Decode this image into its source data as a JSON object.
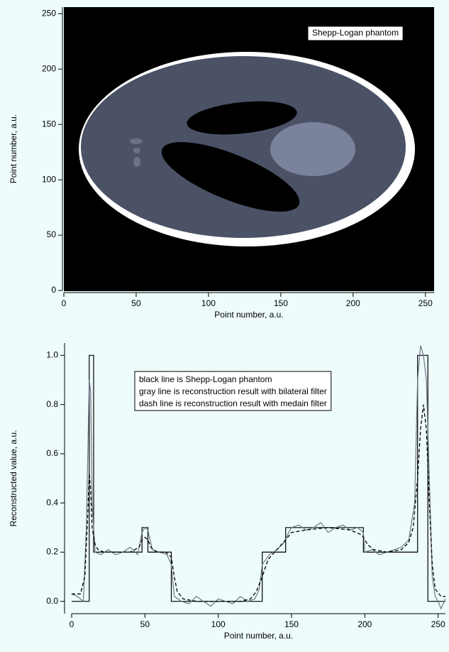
{
  "chart_data": [
    {
      "type": "image",
      "annotation": "Shepp-Logan phantom",
      "xlabel": "Point number, a.u.",
      "ylabel": "Point number, a.u.",
      "xlim": [
        0,
        256
      ],
      "ylim": [
        0,
        256
      ],
      "xticks": [
        0,
        50,
        100,
        150,
        200,
        250
      ],
      "yticks": [
        0,
        50,
        100,
        150,
        200,
        250
      ]
    },
    {
      "type": "line",
      "xlabel": "Point number, a.u.",
      "ylabel": "Reconstructed value, a.u.",
      "xlim": [
        0,
        255
      ],
      "ylim": [
        -0.05,
        1.05
      ],
      "xticks": [
        0,
        50,
        100,
        150,
        200,
        250
      ],
      "yticks": [
        {
          "value": 0,
          "label": "0.0"
        },
        {
          "value": 0.2,
          "label": "0.2"
        },
        {
          "value": 0.4,
          "label": "0.4"
        },
        {
          "value": 0.6,
          "label": "0.6"
        },
        {
          "value": 0.8,
          "label": "0.8"
        },
        {
          "value": 1,
          "label": "1.0"
        }
      ],
      "series": [
        {
          "name": "black line is Shepp-Logan phantom",
          "color": "#000000",
          "dash": false,
          "x": [
            0,
            12,
            12,
            15,
            15,
            48,
            48,
            52,
            52,
            68,
            68,
            130,
            130,
            146,
            146,
            199,
            199,
            236,
            236,
            243,
            243,
            255
          ],
          "values": [
            0,
            0,
            1,
            1,
            0.2,
            0.2,
            0.3,
            0.3,
            0.2,
            0.2,
            0,
            0,
            0.2,
            0.2,
            0.3,
            0.3,
            0.2,
            0.2,
            1,
            1,
            0,
            0
          ]
        },
        {
          "name": "gray line is reconstruction result with bilateral filter",
          "color": "#6e7585",
          "dash": false,
          "x": [
            0,
            4,
            8,
            10,
            12,
            13,
            14,
            16,
            20,
            25,
            30,
            35,
            40,
            45,
            48,
            50,
            52,
            55,
            60,
            65,
            68,
            70,
            75,
            80,
            85,
            90,
            95,
            100,
            105,
            110,
            115,
            120,
            125,
            128,
            130,
            135,
            140,
            145,
            148,
            150,
            155,
            160,
            165,
            170,
            175,
            180,
            185,
            190,
            195,
            199,
            200,
            205,
            210,
            215,
            220,
            225,
            230,
            234,
            236,
            238,
            240,
            242,
            244,
            246,
            248,
            250,
            252,
            255
          ],
          "values": [
            0.03,
            0.02,
            0.0,
            0.3,
            0.9,
            0.85,
            0.4,
            0.2,
            0.19,
            0.21,
            0.19,
            0.2,
            0.22,
            0.19,
            0.28,
            0.3,
            0.29,
            0.21,
            0.2,
            0.19,
            0.15,
            0.02,
            0.0,
            -0.01,
            0.02,
            0.0,
            -0.02,
            0.01,
            0.0,
            -0.01,
            0.02,
            0.0,
            0.01,
            0.05,
            0.15,
            0.19,
            0.21,
            0.24,
            0.28,
            0.3,
            0.31,
            0.29,
            0.3,
            0.32,
            0.28,
            0.3,
            0.31,
            0.29,
            0.3,
            0.28,
            0.2,
            0.21,
            0.19,
            0.2,
            0.21,
            0.22,
            0.25,
            0.4,
            0.9,
            1.04,
            1.0,
            0.9,
            0.5,
            0.1,
            0.02,
            0.0,
            -0.03,
            0.01
          ]
        },
        {
          "name": "dash line is reconstruction result with medain filter",
          "color": "#000000",
          "dash": true,
          "x": [
            0,
            6,
            9,
            11,
            12,
            13,
            14,
            16,
            18,
            22,
            30,
            40,
            46,
            48,
            50,
            52,
            54,
            58,
            64,
            68,
            70,
            72,
            76,
            85,
            100,
            115,
            122,
            126,
            130,
            134,
            140,
            146,
            150,
            160,
            175,
            190,
            198,
            202,
            206,
            215,
            225,
            230,
            233,
            236,
            238,
            240,
            242,
            244,
            246,
            248,
            252,
            255
          ],
          "values": [
            0.03,
            0.03,
            0.1,
            0.35,
            0.52,
            0.45,
            0.3,
            0.23,
            0.21,
            0.2,
            0.2,
            0.2,
            0.22,
            0.25,
            0.26,
            0.25,
            0.22,
            0.2,
            0.2,
            0.18,
            0.1,
            0.04,
            0.01,
            0.0,
            0.0,
            0.0,
            0.01,
            0.04,
            0.1,
            0.17,
            0.21,
            0.25,
            0.28,
            0.29,
            0.3,
            0.29,
            0.27,
            0.23,
            0.21,
            0.2,
            0.21,
            0.24,
            0.3,
            0.5,
            0.7,
            0.8,
            0.7,
            0.4,
            0.15,
            0.05,
            0.02,
            0.02
          ]
        }
      ]
    }
  ]
}
